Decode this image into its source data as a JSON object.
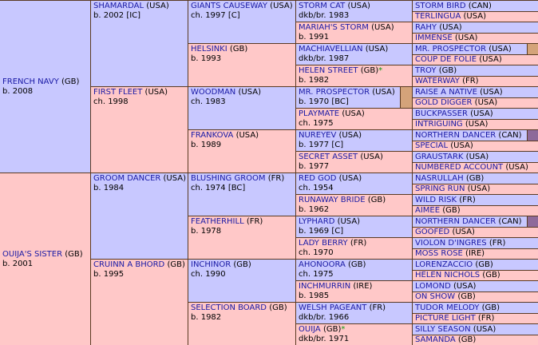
{
  "gen1": [
    {
      "name": "FRENCH NAVY",
      "country": "(GB)",
      "info": "b. 2008"
    },
    {
      "name": "OUIJA'S SISTER",
      "country": "(GB)",
      "info": "b. 2001"
    }
  ],
  "gen2": [
    {
      "name": "SHAMARDAL",
      "country": "(USA)",
      "info": "b. 2002 [IC]"
    },
    {
      "name": "FIRST FLEET",
      "country": "(USA)",
      "info": "ch. 1998"
    },
    {
      "name": "GROOM DANCER",
      "country": "(USA)",
      "info": "b. 1984"
    },
    {
      "name": "CRUINN A BHORD",
      "country": "(GB)",
      "info": "b. 1995"
    }
  ],
  "gen3": [
    {
      "name": "GIANTS CAUSEWAY",
      "country": "(USA)",
      "info": "ch. 1997 [C]"
    },
    {
      "name": "HELSINKI",
      "country": "(GB)",
      "info": "b. 1993"
    },
    {
      "name": "WOODMAN",
      "country": "(USA)",
      "info": "ch. 1983"
    },
    {
      "name": "FRANKOVA",
      "country": "(USA)",
      "info": "b. 1989"
    },
    {
      "name": "BLUSHING GROOM",
      "country": "(FR)",
      "info": "ch. 1974 [BC]"
    },
    {
      "name": "FEATHERHILL",
      "country": "(FR)",
      "info": "b. 1978"
    },
    {
      "name": "INCHINOR",
      "country": "(GB)",
      "info": "ch. 1990"
    },
    {
      "name": "SELECTION BOARD",
      "country": "(GB)",
      "info": "b. 1982"
    }
  ],
  "gen4": [
    {
      "name": "STORM CAT",
      "country": "(USA)",
      "info": "dkb/br. 1983"
    },
    {
      "name": "MARIAH'S STORM",
      "country": "(USA)",
      "info": "b. 1991"
    },
    {
      "name": "MACHIAVELLIAN",
      "country": "(USA)",
      "info": "dkb/br. 1987"
    },
    {
      "name": "HELEN STREET",
      "country": "(GB)",
      "star": "*",
      "info": "b. 1982"
    },
    {
      "name": "MR. PROSPECTOR",
      "country": "(USA)",
      "info": "b. 1970 [BC]"
    },
    {
      "name": "PLAYMATE",
      "country": "(USA)",
      "info": "ch. 1975"
    },
    {
      "name": "NUREYEV",
      "country": "(USA)",
      "info": "b. 1977 [C]"
    },
    {
      "name": "SECRET ASSET",
      "country": "(USA)",
      "info": "b. 1977"
    },
    {
      "name": "RED GOD",
      "country": "(USA)",
      "info": "ch. 1954"
    },
    {
      "name": "RUNAWAY BRIDE",
      "country": "(GB)",
      "info": "b. 1962"
    },
    {
      "name": "LYPHARD",
      "country": "(USA)",
      "info": "b. 1969 [C]"
    },
    {
      "name": "LADY BERRY",
      "country": "(FR)",
      "info": "ch. 1970"
    },
    {
      "name": "AHONOORA",
      "country": "(GB)",
      "info": "ch. 1975"
    },
    {
      "name": "INCHMURRIN",
      "country": "(IRE)",
      "info": "b. 1985"
    },
    {
      "name": "WELSH PAGEANT",
      "country": "(FR)",
      "info": "dkb/br. 1966"
    },
    {
      "name": "OUIJA",
      "country": "(GB)",
      "star": "*",
      "info": "dkb/br. 1971"
    }
  ],
  "gen5": [
    {
      "name": "STORM BIRD",
      "country": "(CAN)"
    },
    {
      "name": "TERLINGUA",
      "country": "(USA)"
    },
    {
      "name": "RAHY",
      "country": "(USA)"
    },
    {
      "name": "IMMENSE",
      "country": "(USA)"
    },
    {
      "name": "MR. PROSPECTOR",
      "country": "(USA)"
    },
    {
      "name": "COUP DE FOLIE",
      "country": "(USA)"
    },
    {
      "name": "TROY",
      "country": "(GB)"
    },
    {
      "name": "WATERWAY",
      "country": "(FR)"
    },
    {
      "name": "RAISE A NATIVE",
      "country": "(USA)"
    },
    {
      "name": "GOLD DIGGER",
      "country": "(USA)"
    },
    {
      "name": "BUCKPASSER",
      "country": "(USA)"
    },
    {
      "name": "INTRIGUING",
      "country": "(USA)"
    },
    {
      "name": "NORTHERN DANCER",
      "country": "(CAN)"
    },
    {
      "name": "SPECIAL",
      "country": "(USA)"
    },
    {
      "name": "GRAUSTARK",
      "country": "(USA)"
    },
    {
      "name": "NUMBERED ACCOUNT",
      "country": "(USA)"
    },
    {
      "name": "NASRULLAH",
      "country": "(GB)"
    },
    {
      "name": "SPRING RUN",
      "country": "(USA)"
    },
    {
      "name": "WILD RISK",
      "country": "(FR)"
    },
    {
      "name": "AIMEE",
      "country": "(GB)"
    },
    {
      "name": "NORTHERN DANCER",
      "country": "(CAN)"
    },
    {
      "name": "GOOFED",
      "country": "(USA)"
    },
    {
      "name": "VIOLON D'INGRES",
      "country": "(FR)"
    },
    {
      "name": "MOSS ROSE",
      "country": "(IRE)"
    },
    {
      "name": "LORENZACCIO",
      "country": "(GB)"
    },
    {
      "name": "HELEN NICHOLS",
      "country": "(GB)"
    },
    {
      "name": "LOMOND",
      "country": "(USA)"
    },
    {
      "name": "ON SHOW",
      "country": "(GB)"
    },
    {
      "name": "TUDOR MELODY",
      "country": "(GB)"
    },
    {
      "name": "PICTURE LIGHT",
      "country": "(FR)"
    },
    {
      "name": "SILLY SEASON",
      "country": "(USA)"
    },
    {
      "name": "SAMANDA",
      "country": "(GB)"
    }
  ],
  "colors": {
    "male": "#c8c8ff",
    "female": "#ffc8c8",
    "link": "#1a1aa6",
    "border": "#5a3a22",
    "star": "#119911",
    "tan_bar": "#d4a37a",
    "purple_bar": "#8e6a9a"
  },
  "bars": {
    "gen4": [
      {
        "index": 4,
        "color": "#d4a37a"
      }
    ],
    "gen5": [
      {
        "index": 4,
        "color": "#d4a37a"
      },
      {
        "index": 12,
        "color": "#8e6a9a"
      },
      {
        "index": 20,
        "color": "#8e6a9a"
      }
    ]
  }
}
